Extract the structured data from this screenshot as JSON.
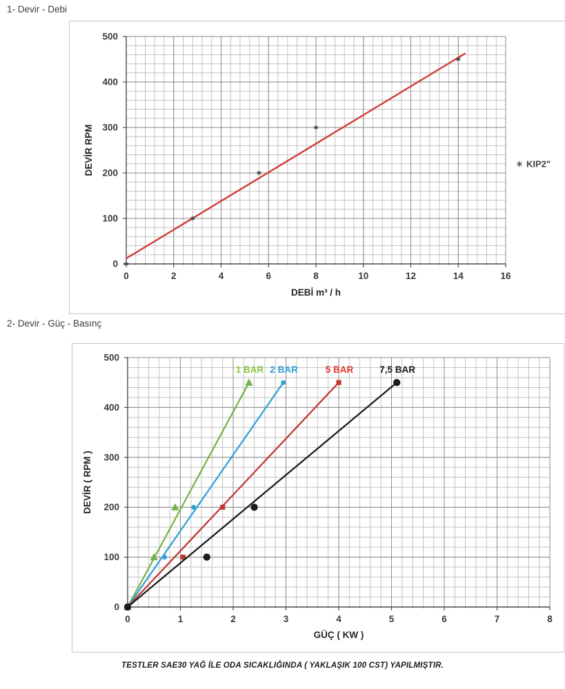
{
  "page": {
    "section1_title": "1- Devir - Debi",
    "section2_title": "2- Devir - Güç - Basınç",
    "footer": "TESTLER SAE30 YAĞ İLE ODA SICAKLIĞINDA ( YAKLAŞIK 100 CST) YAPILMIŞTIR."
  },
  "chart_data": [
    {
      "type": "scatter",
      "name": "devir-debi",
      "title": "1- Devir - Debi",
      "xlabel": "DEBİ m³ / h",
      "ylabel": "DEVİR RPM",
      "xlim": [
        0,
        16
      ],
      "xticks": [
        0,
        2,
        4,
        6,
        8,
        10,
        12,
        14,
        16
      ],
      "xminor_step": 0.4,
      "ylim": [
        0,
        500
      ],
      "yticks": [
        0,
        100,
        200,
        300,
        400,
        500
      ],
      "yminor_step": 20,
      "grid": true,
      "legend": {
        "label": "KIP2\"",
        "marker": "star",
        "color": "#404040",
        "position": "right-middle"
      },
      "series": [
        {
          "name": "KIP2\"",
          "marker": "star",
          "color": "#404040",
          "line": "none",
          "points": [
            [
              0,
              0
            ],
            [
              2.8,
              100
            ],
            [
              5.6,
              200
            ],
            [
              8,
              300
            ],
            [
              14,
              450
            ]
          ]
        }
      ],
      "trendline": {
        "color": "#d13c35",
        "points": [
          [
            0,
            12
          ],
          [
            14.3,
            463
          ]
        ]
      },
      "colors": {
        "grid_minor": "#c2c2c2",
        "grid_major": "#8a8a8a",
        "axis": "#4a4a4a",
        "tick_text": "#3a3a3a"
      }
    },
    {
      "type": "line",
      "name": "devir-guc-basinc",
      "title": "2- Devir - Güç - Basınç",
      "xlabel": "GÜÇ ( KW )",
      "ylabel": "DEVİR ( RPM )",
      "xlim": [
        0,
        8
      ],
      "xticks": [
        0,
        1,
        2,
        3,
        4,
        5,
        6,
        7,
        8
      ],
      "xminor_step": 0.2,
      "ylim": [
        0,
        500
      ],
      "yticks": [
        0,
        100,
        200,
        300,
        400,
        500
      ],
      "yminor_step": 20,
      "grid": true,
      "series_labels": true,
      "series": [
        {
          "name": "1 BAR",
          "color": "#76b34a",
          "label_color": "#8cc63e",
          "marker": "triangle",
          "line": "straight",
          "points": [
            [
              0,
              0
            ],
            [
              0.5,
              100
            ],
            [
              0.9,
              200
            ],
            [
              2.3,
              450
            ]
          ]
        },
        {
          "name": "2 BAR",
          "color": "#33a0d6",
          "label_color": "#2e9fd8",
          "marker": "circle",
          "line": "straight",
          "points": [
            [
              0,
              0
            ],
            [
              0.7,
              100
            ],
            [
              1.25,
              200
            ],
            [
              2.95,
              450
            ]
          ]
        },
        {
          "name": "5 BAR",
          "color": "#c03830",
          "label_color": "#e03a30",
          "marker": "square",
          "line": "straight",
          "points": [
            [
              0,
              0
            ],
            [
              1.05,
              100
            ],
            [
              1.8,
              200
            ],
            [
              4.0,
              450
            ]
          ]
        },
        {
          "name": "7,5 BAR",
          "color": "#1b1b1b",
          "label_color": "#1b1b1b",
          "marker": "circle-large",
          "line": "straight",
          "points": [
            [
              0,
              0
            ],
            [
              1.5,
              100
            ],
            [
              2.4,
              200
            ],
            [
              5.1,
              450
            ]
          ]
        }
      ],
      "colors": {
        "grid_minor": "#c2c2c2",
        "grid_major": "#8a8a8a",
        "axis": "#4a4a4a",
        "tick_text": "#3a3a3a"
      }
    }
  ]
}
